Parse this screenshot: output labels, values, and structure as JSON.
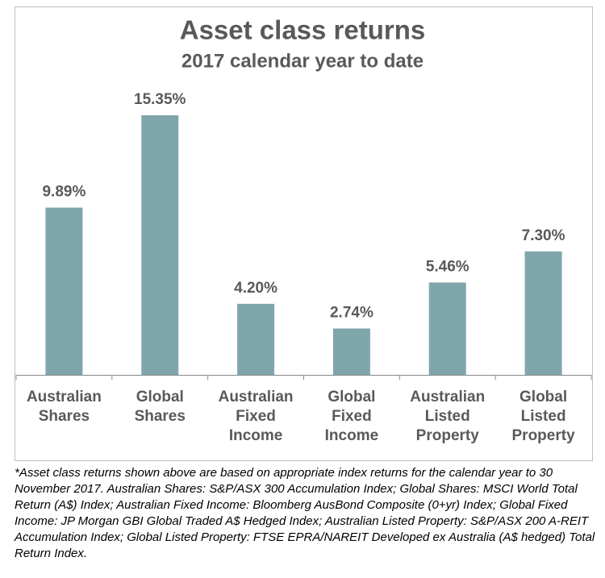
{
  "chart_data": {
    "type": "bar",
    "title": "Asset class returns",
    "subtitle": "2017 calendar year to date",
    "categories": [
      "Australian Shares",
      "Global Shares",
      "Australian Fixed Income",
      "Global Fixed Income",
      "Australian Listed Property",
      "Global Listed Property"
    ],
    "values": [
      9.89,
      15.35,
      4.2,
      2.74,
      5.46,
      7.3
    ],
    "value_labels": [
      "9.89%",
      "15.35%",
      "4.20%",
      "2.74%",
      "5.46%",
      "7.30%"
    ],
    "color": "#7fa6ab"
  },
  "footnote": "*Asset class returns shown above are based on appropriate index returns for the calendar year to 30 November 2017. Australian Shares: S&P/ASX 300 Accumulation Index; Global Shares: MSCI World Total Return (A$) Index; Australian Fixed Income: Bloomberg AusBond Composite (0+yr) Index; Global Fixed Income: JP Morgan GBI Global Traded A$ Hedged Index; Australian Listed Property: S&P/ASX 200 A-REIT Accumulation Index; Global Listed Property: FTSE EPRA/NAREIT Developed ex Australia (A$ hedged) Total Return Index."
}
